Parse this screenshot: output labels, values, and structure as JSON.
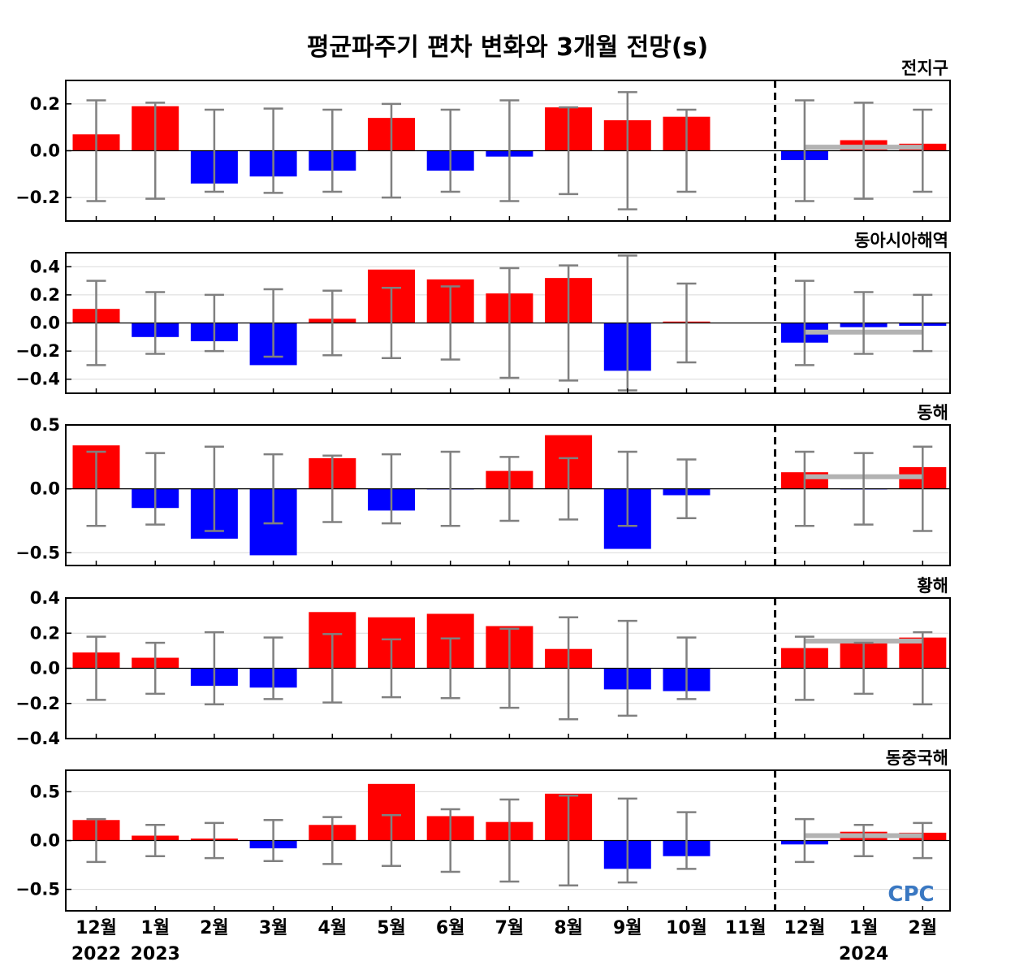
{
  "chart_data": {
    "type": "bar",
    "title": "평균파주기 편차 변화와 3개월 전망(s)",
    "months": [
      "12월",
      "1월",
      "2월",
      "3월",
      "4월",
      "5월",
      "6월",
      "7월",
      "8월",
      "9월",
      "10월",
      "11월",
      "12월",
      "1월",
      "2월"
    ],
    "year_labels": [
      {
        "index": 0,
        "label": "2022"
      },
      {
        "index": 1,
        "label": "2023"
      },
      {
        "index": 13,
        "label": "2024"
      }
    ],
    "divider_after": "11월",
    "colors": {
      "positive": "#ff0000",
      "negative": "#0000ff",
      "error_bar": "#808080",
      "forecast": "#b3b3b3"
    },
    "logo": "CPC",
    "panels": [
      {
        "name": "전지구",
        "ylim": [
          -0.3,
          0.3
        ],
        "yticks": [
          -0.2,
          0.0,
          0.2
        ],
        "tick_labels": [
          "−0.2",
          "0.0",
          "0.2"
        ],
        "values": [
          0.07,
          0.19,
          -0.14,
          -0.11,
          -0.085,
          0.14,
          -0.085,
          -0.025,
          0.185,
          0.13,
          0.145,
          0.0,
          -0.04,
          0.045,
          0.03
        ],
        "error": [
          0.215,
          0.205,
          0.175,
          0.18,
          0.175,
          0.2,
          0.175,
          0.215,
          0.185,
          0.25,
          0.175,
          null,
          0.215,
          0.205,
          0.175
        ],
        "forecast_range": [
          0.015,
          0.015
        ]
      },
      {
        "name": "동아시아해역",
        "ylim": [
          -0.5,
          0.5
        ],
        "yticks": [
          -0.4,
          -0.2,
          0.0,
          0.2,
          0.4
        ],
        "tick_labels": [
          "−0.4",
          "−0.2",
          "0.0",
          "0.2",
          "0.4"
        ],
        "values": [
          0.1,
          -0.1,
          -0.13,
          -0.3,
          0.03,
          0.38,
          0.31,
          0.21,
          0.32,
          -0.34,
          0.01,
          0.0,
          -0.14,
          -0.03,
          -0.02
        ],
        "error": [
          0.3,
          0.22,
          0.2,
          0.24,
          0.23,
          0.25,
          0.26,
          0.39,
          0.41,
          0.48,
          0.28,
          null,
          0.3,
          0.22,
          0.2
        ],
        "forecast_range": [
          -0.065,
          -0.065
        ]
      },
      {
        "name": "동해",
        "ylim": [
          -0.6,
          0.5
        ],
        "yticks": [
          -0.5,
          0.0,
          0.5
        ],
        "tick_labels": [
          "−0.5",
          "0.0",
          "0.5"
        ],
        "values": [
          0.34,
          -0.15,
          -0.39,
          -0.52,
          0.24,
          -0.17,
          -0.005,
          0.14,
          0.42,
          -0.47,
          -0.05,
          0.0,
          0.13,
          -0.005,
          0.17
        ],
        "error": [
          0.29,
          0.28,
          0.33,
          0.27,
          0.26,
          0.27,
          0.29,
          0.25,
          0.24,
          0.29,
          0.23,
          null,
          0.29,
          0.28,
          0.33
        ],
        "forecast_range": [
          0.095,
          0.095
        ]
      },
      {
        "name": "황해",
        "ylim": [
          -0.4,
          0.4
        ],
        "yticks": [
          -0.4,
          -0.2,
          0.0,
          0.2,
          0.4
        ],
        "tick_labels": [
          "−0.4",
          "−0.2",
          "0.0",
          "0.2",
          "0.4"
        ],
        "values": [
          0.09,
          0.06,
          -0.1,
          -0.11,
          0.32,
          0.29,
          0.31,
          0.24,
          0.11,
          -0.12,
          -0.13,
          0.0,
          0.115,
          0.15,
          0.175
        ],
        "error": [
          0.18,
          0.145,
          0.205,
          0.175,
          0.195,
          0.165,
          0.17,
          0.225,
          0.29,
          0.27,
          0.175,
          null,
          0.18,
          0.145,
          0.205
        ],
        "forecast_range": [
          0.155,
          0.155
        ]
      },
      {
        "name": "동중국해",
        "ylim": [
          -0.72,
          0.72
        ],
        "yticks": [
          -0.5,
          0.0,
          0.5
        ],
        "tick_labels": [
          "−0.5",
          "0.0",
          "0.5"
        ],
        "values": [
          0.21,
          0.05,
          0.02,
          -0.08,
          0.16,
          0.58,
          0.25,
          0.19,
          0.48,
          -0.29,
          -0.16,
          0.0,
          -0.04,
          0.09,
          0.08
        ],
        "error": [
          0.22,
          0.16,
          0.18,
          0.21,
          0.24,
          0.26,
          0.32,
          0.42,
          0.46,
          0.43,
          0.29,
          null,
          0.22,
          0.16,
          0.18
        ],
        "forecast_range": [
          0.05,
          0.05
        ]
      }
    ]
  }
}
